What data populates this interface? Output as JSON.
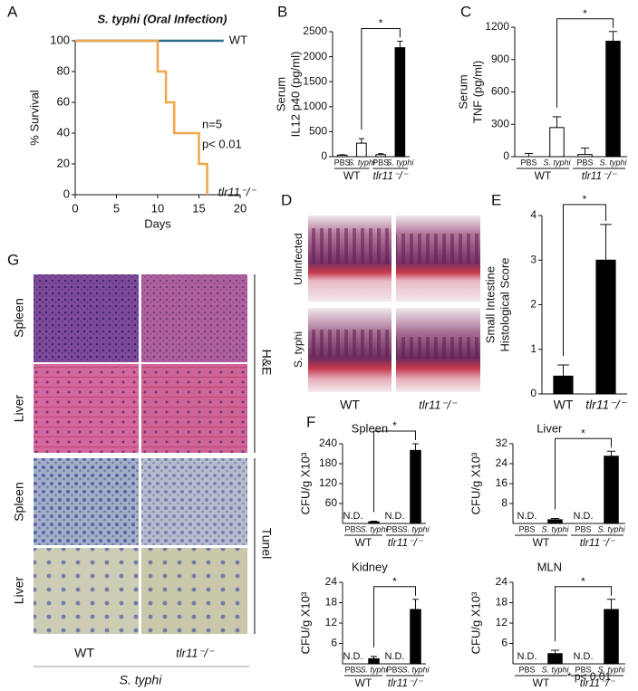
{
  "panel_labels": [
    "A",
    "B",
    "C",
    "D",
    "E",
    "F",
    "G"
  ],
  "chart_data": [
    {
      "type": "line",
      "title": "S. typhi (Oral Infection)",
      "xlabel": "Days",
      "ylabel": [
        "% Survival"
      ],
      "x": [
        0,
        10,
        11,
        12,
        15,
        16,
        18
      ],
      "xlim": [
        0,
        20
      ],
      "xticks": [
        0,
        5,
        10,
        15,
        20
      ],
      "ylim": [
        0,
        100
      ],
      "yticks": [
        0,
        20,
        40,
        60,
        80,
        100
      ],
      "series": [
        {
          "name": "WT",
          "color": "#2b6c88",
          "values": [
            100,
            100,
            100,
            100,
            100,
            100,
            100
          ]
        },
        {
          "name": "tlr11⁻/⁻",
          "color": "#f0a64a",
          "values": [
            100,
            80,
            60,
            40,
            20,
            0,
            null
          ]
        }
      ],
      "annotations": [
        "n=5",
        "p< 0.01"
      ]
    },
    {
      "type": "bar",
      "ylabel": [
        "Serum",
        "IL12 p40 (pg/ml)"
      ],
      "categories": [
        "PBS",
        "S. typhi",
        "PBS",
        "S. typhi"
      ],
      "groups": [
        "WT",
        "tlr11⁻/⁻"
      ],
      "values": [
        30,
        270,
        40,
        2180
      ],
      "errors": [
        10,
        90,
        20,
        130
      ],
      "colors": [
        "#ffffff",
        "#ffffff",
        "#ffffff",
        "#000000"
      ],
      "ylim": [
        0,
        2500
      ],
      "yticks": [
        0,
        500,
        1000,
        1500,
        2000,
        2500
      ],
      "significance": "*"
    },
    {
      "type": "bar",
      "ylabel": [
        "Serum",
        "TNF  (pg/ml)"
      ],
      "categories": [
        "PBS",
        "S. typhi",
        "PBS",
        "S. typhi"
      ],
      "groups": [
        "WT",
        "tlr11⁻/⁻"
      ],
      "values": [
        0,
        270,
        20,
        1070
      ],
      "errors": [
        30,
        100,
        60,
        90
      ],
      "colors": [
        "#ffffff",
        "#ffffff",
        "#ffffff",
        "#000000"
      ],
      "ylim": [
        0,
        1200
      ],
      "yticks": [
        0,
        300,
        600,
        900,
        1200
      ],
      "significance": "*"
    },
    {
      "type": "bar",
      "ylabel": [
        "Small Intestine",
        "Histological Score"
      ],
      "categories": [
        "WT",
        "tlr11⁻/⁻"
      ],
      "values": [
        0.4,
        3.0
      ],
      "errors": [
        0.25,
        0.8
      ],
      "colors": [
        "#000000",
        "#000000"
      ],
      "ylim": [
        0,
        4
      ],
      "yticks": [
        0,
        1,
        2,
        3,
        4
      ],
      "significance": "*"
    },
    {
      "type": "bar",
      "title": "Spleen",
      "ylabel": [
        "CFU/g X10³"
      ],
      "categories": [
        "PBS",
        "S. typhi",
        "PBS",
        "S. typhi"
      ],
      "groups": [
        "WT",
        "tlr11⁻/⁻"
      ],
      "values": [
        null,
        5,
        null,
        220
      ],
      "value_labels": [
        "N.D.",
        null,
        "N.D.",
        null
      ],
      "errors": [
        null,
        2,
        null,
        20
      ],
      "colors": [
        "#ffffff",
        "#000000",
        "#ffffff",
        "#000000"
      ],
      "ylim": [
        0,
        240
      ],
      "yticks": [
        60,
        120,
        180,
        240
      ],
      "significance": "*"
    },
    {
      "type": "bar",
      "title": "Liver",
      "ylabel": [
        "CFU/g X10³"
      ],
      "categories": [
        "PBS",
        "S. typhi",
        "PBS",
        "S. typhi"
      ],
      "groups": [
        "WT",
        "tlr11⁻/⁻"
      ],
      "values": [
        null,
        1.5,
        null,
        27
      ],
      "value_labels": [
        "N.D.",
        null,
        "N.D.",
        null
      ],
      "errors": [
        null,
        0.5,
        null,
        2
      ],
      "colors": [
        "#ffffff",
        "#000000",
        "#ffffff",
        "#000000"
      ],
      "ylim": [
        0,
        32
      ],
      "yticks": [
        8,
        16,
        24,
        32
      ],
      "significance": "*"
    },
    {
      "type": "bar",
      "title": "Kidney",
      "ylabel": [
        "CFU/g X10³"
      ],
      "categories": [
        "PBS",
        "S. typhi",
        "PBS",
        "S. typhi"
      ],
      "groups": [
        "WT",
        "tlr11⁻/⁻"
      ],
      "values": [
        null,
        1.5,
        null,
        16
      ],
      "value_labels": [
        "N.D.",
        null,
        "N.D.",
        null
      ],
      "errors": [
        null,
        0.7,
        null,
        3
      ],
      "colors": [
        "#ffffff",
        "#000000",
        "#ffffff",
        "#000000"
      ],
      "ylim": [
        0,
        24
      ],
      "yticks": [
        6,
        12,
        18,
        24
      ],
      "significance": "*"
    },
    {
      "type": "bar",
      "title": "MLN",
      "ylabel": [
        "CFU/g X10³"
      ],
      "categories": [
        "PBS",
        "S. typhi",
        "PBS",
        "S. typhi"
      ],
      "groups": [
        "WT",
        "tlr11⁻/⁻"
      ],
      "values": [
        null,
        3,
        null,
        16
      ],
      "value_labels": [
        "N.D.",
        null,
        "N.D.",
        null
      ],
      "errors": [
        null,
        1,
        null,
        3
      ],
      "colors": [
        "#ffffff",
        "#000000",
        "#ffffff",
        "#000000"
      ],
      "ylim": [
        0,
        24
      ],
      "yticks": [
        6,
        12,
        18,
        24
      ],
      "significance": "*"
    }
  ],
  "histology_D": {
    "rows": [
      "Uninfected",
      "S. typhi"
    ],
    "columns": [
      "WT",
      "tlr11⁻/⁻"
    ]
  },
  "histology_G": {
    "rows": [
      "Spleen",
      "Liver",
      "Spleen",
      "Liver"
    ],
    "stains": [
      "H&E",
      "Tunel"
    ],
    "columns": [
      "WT",
      "tlr11⁻/⁻"
    ],
    "caption": "S. typhi"
  },
  "footnote": "* p< 0.01"
}
